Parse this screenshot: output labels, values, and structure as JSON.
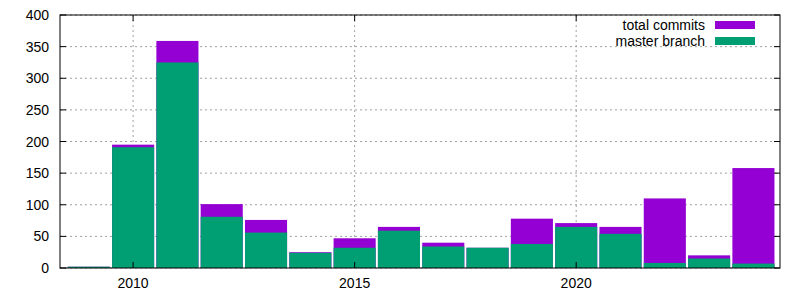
{
  "chart_data": {
    "type": "bar",
    "x": [
      2009,
      2010,
      2011,
      2012,
      2013,
      2014,
      2015,
      2016,
      2017,
      2018,
      2019,
      2020,
      2021,
      2022,
      2023,
      2024
    ],
    "series": [
      {
        "name": "total commits",
        "color": "#9400d3",
        "values": [
          2,
          195,
          359,
          101,
          76,
          25,
          47,
          65,
          40,
          32,
          78,
          71,
          65,
          110,
          20,
          158
        ]
      },
      {
        "name": "master branch",
        "color": "#009e73",
        "values": [
          2,
          191,
          325,
          81,
          56,
          24,
          32,
          59,
          34,
          32,
          38,
          65,
          54,
          8,
          15,
          7
        ]
      }
    ],
    "xlim": [
      2008.35,
      2024.6
    ],
    "xticks": [
      2010,
      2015,
      2020
    ],
    "ylim": [
      0,
      400
    ],
    "yticks": [
      0,
      50,
      100,
      150,
      200,
      250,
      300,
      350,
      400
    ],
    "grid": true,
    "legend": "top-right"
  }
}
